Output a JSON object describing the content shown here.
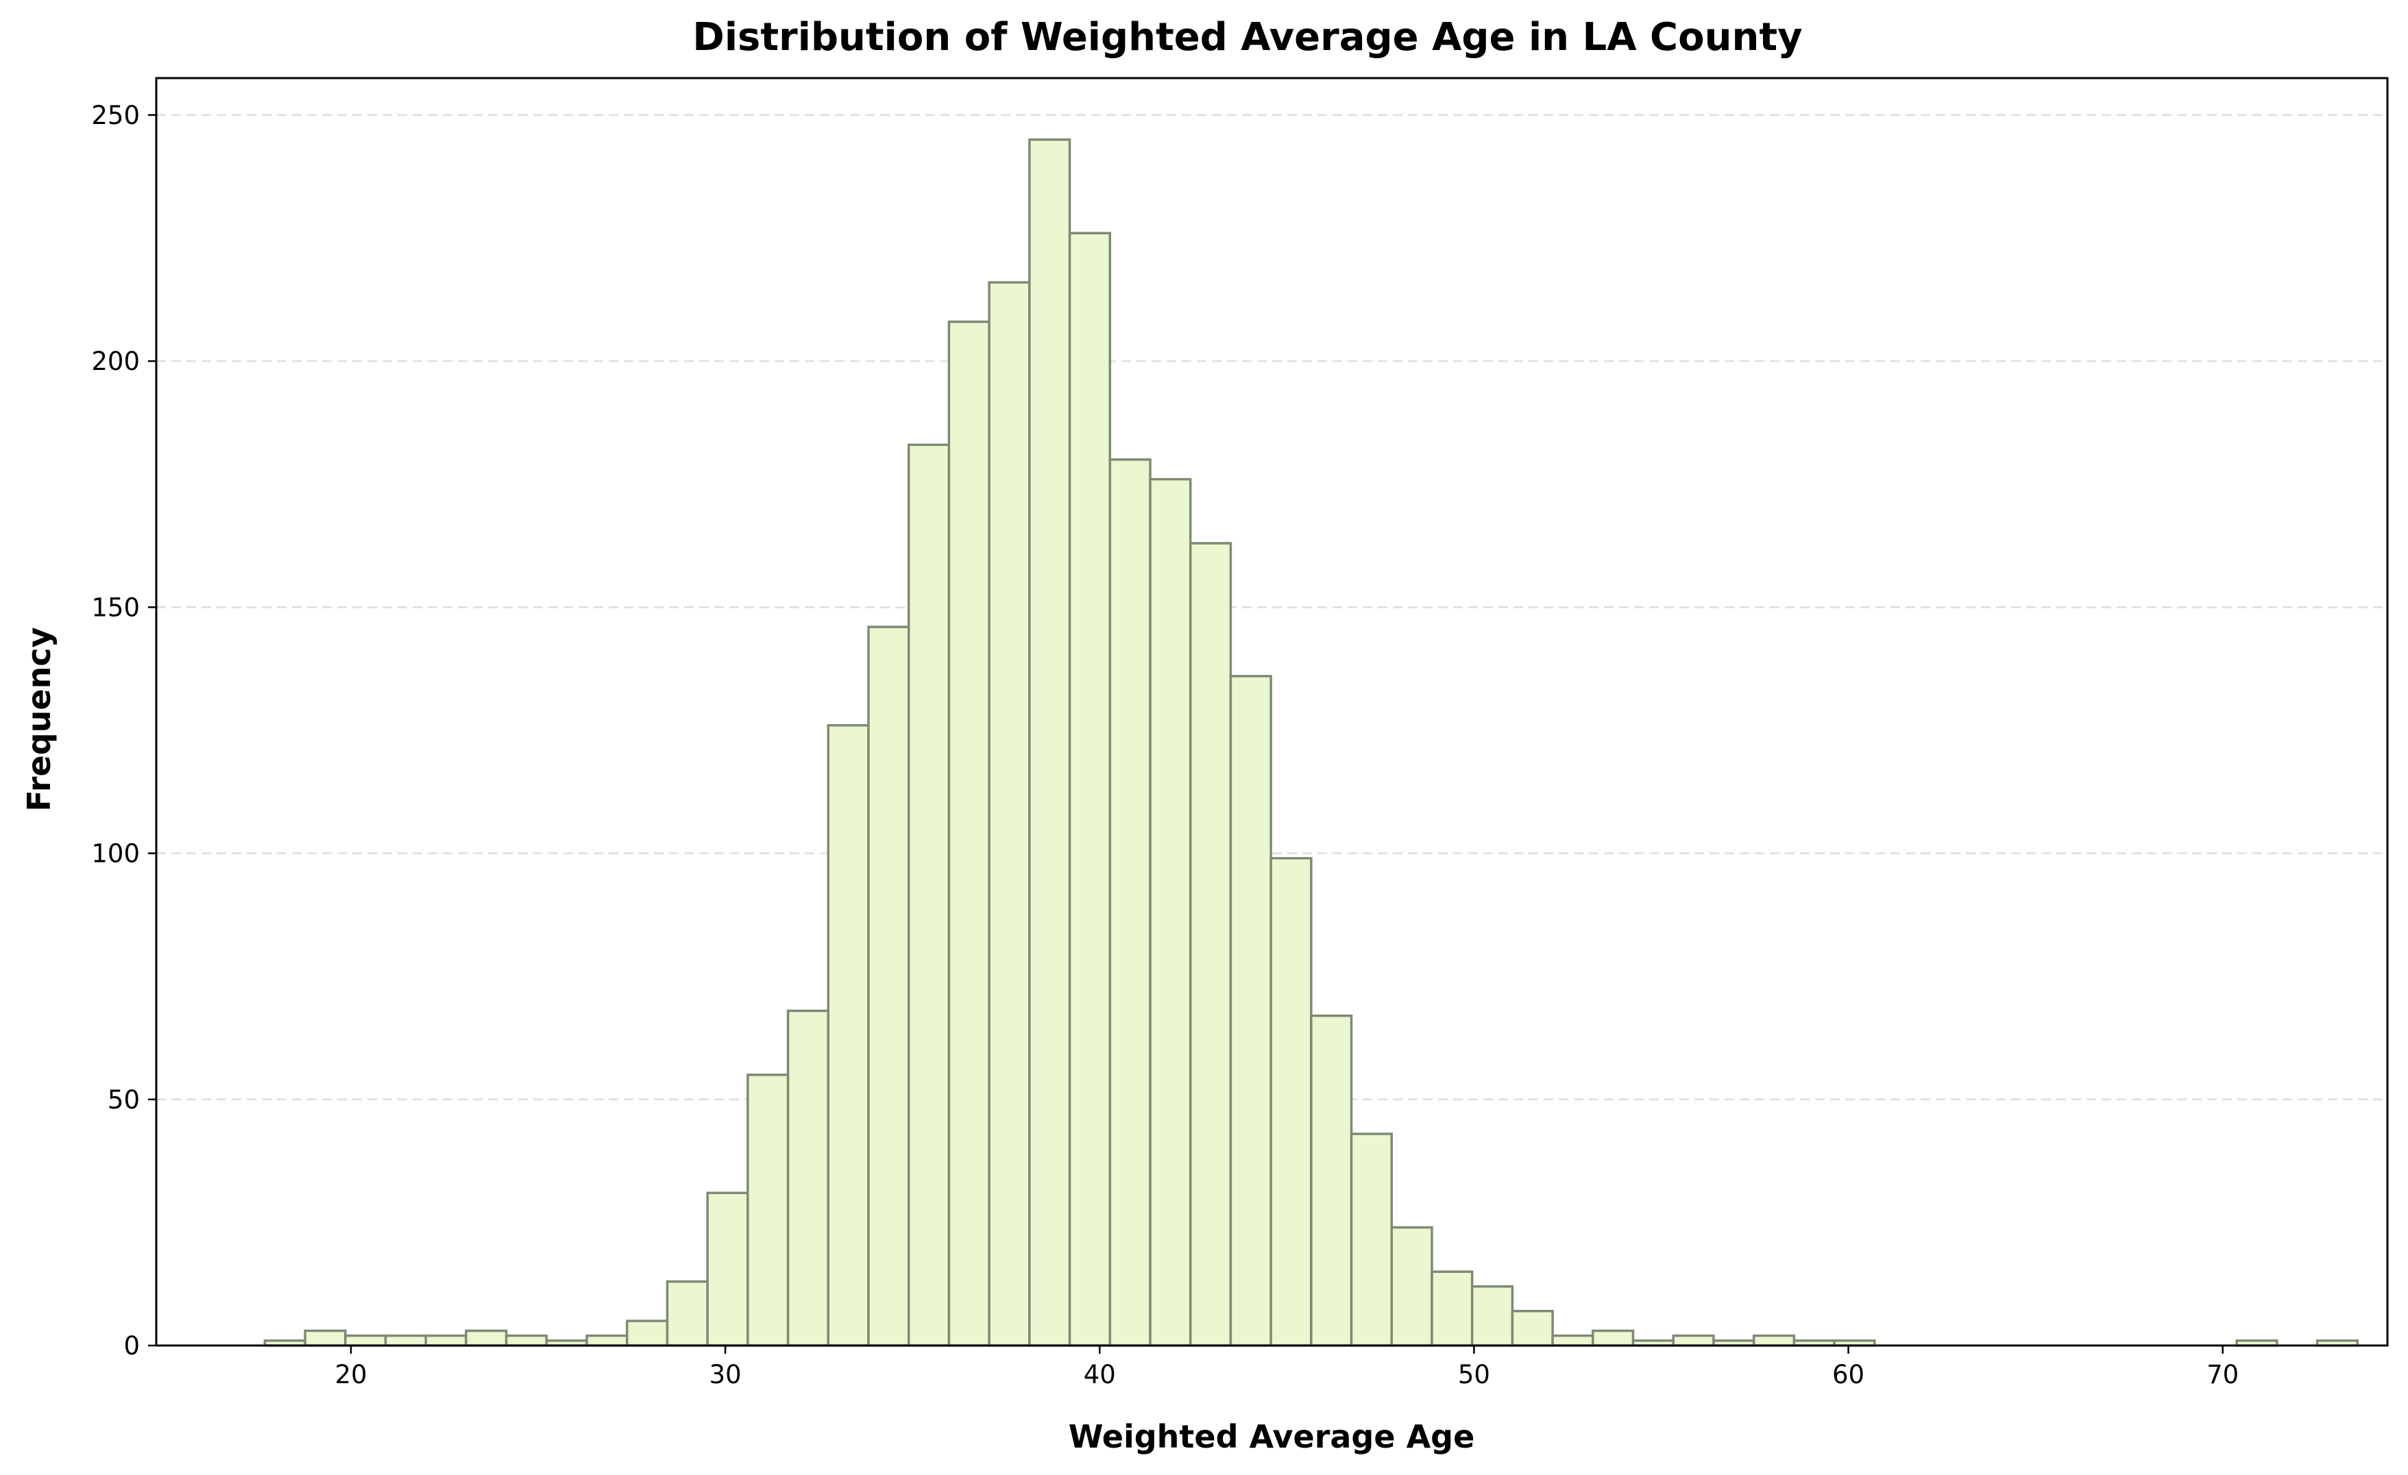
{
  "chart_data": {
    "type": "bar",
    "title": "Distribution of Weighted Average Age in LA County",
    "xlabel": "Weighted Average Age",
    "ylabel": "Frequency",
    "xlim": [
      14.8,
      74.4
    ],
    "ylim": [
      0,
      257.5
    ],
    "xticks": [
      20,
      30,
      40,
      50,
      60,
      70
    ],
    "yticks": [
      0,
      50,
      100,
      150,
      200,
      250
    ],
    "grid": "horizontal dashed",
    "bin_start": 17.7,
    "bin_width": 1.075,
    "values": [
      1,
      3,
      2,
      2,
      2,
      3,
      2,
      1,
      2,
      5,
      13,
      31,
      55,
      68,
      126,
      146,
      183,
      208,
      216,
      245,
      226,
      180,
      176,
      163,
      136,
      99,
      67,
      43,
      24,
      15,
      12,
      7,
      2,
      3,
      1,
      2,
      1,
      2,
      1,
      1,
      0,
      0,
      0,
      0,
      0,
      0,
      0,
      0,
      0,
      1,
      0,
      1
    ],
    "colors": {
      "bar_fill": "#eaf7d0",
      "bar_edge": "#7f8a76",
      "grid": "#dddddd"
    }
  }
}
